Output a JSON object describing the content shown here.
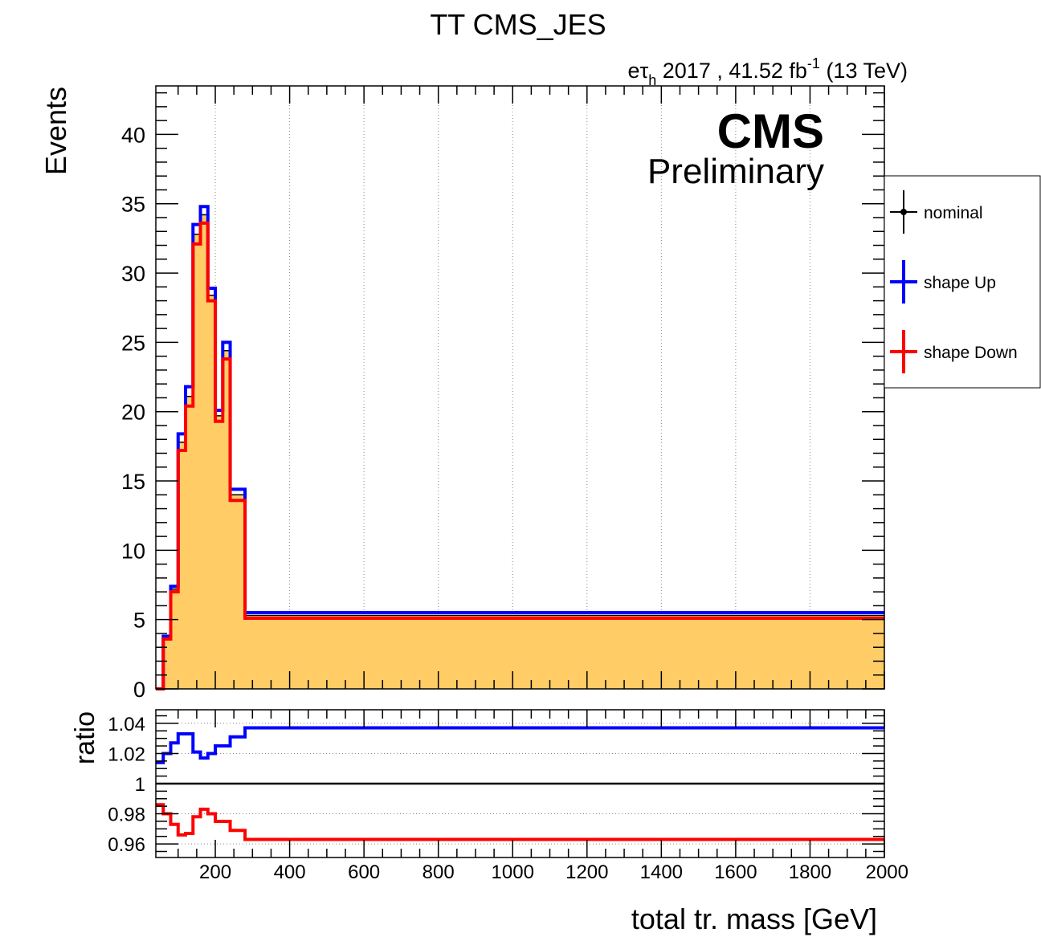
{
  "title": "TT CMS_JES",
  "lumi": {
    "channel_e": "e",
    "channel_tau": "τ",
    "channel_sub": "h",
    "text": " 2017 , 41.52 fb",
    "exp": "-1",
    "energy": " (13 TeV)"
  },
  "cms_label": "CMS",
  "cms_sublabel": "Preliminary",
  "colors": {
    "nominal_fill": "#ffcc66",
    "up": "#0000ff",
    "down": "#ff0000",
    "nominal": "#000000"
  },
  "legend": {
    "nominal": "nominal",
    "up": "shape Up",
    "down": "shape Down"
  },
  "chart_data": [
    {
      "type": "bar",
      "ylabel": "Events",
      "xlabel": "",
      "xlim": [
        40,
        2000
      ],
      "ylim": [
        0,
        43.5
      ],
      "grid": "vertical dotted at x ticks",
      "legend_position": "right, outside plot",
      "x_ticks": [
        200,
        400,
        600,
        800,
        1000,
        1200,
        1400,
        1600,
        1800,
        2000
      ],
      "y_ticks": [
        0,
        5,
        10,
        15,
        20,
        25,
        30,
        35,
        40
      ],
      "bin_edges": [
        40,
        60,
        80,
        100,
        120,
        140,
        160,
        180,
        200,
        220,
        240,
        260,
        280,
        300,
        325,
        350,
        400,
        2000
      ],
      "series": [
        {
          "name": "nominal",
          "values": [
            0,
            3.7,
            7.2,
            17.8,
            21.1,
            32.8,
            34.2,
            28.4,
            19.7,
            24.4,
            14.0,
            14.0,
            5.3,
            5.3,
            5.3,
            5.3,
            5.3
          ]
        },
        {
          "name": "shape Up",
          "values": [
            0,
            3.8,
            7.4,
            18.4,
            21.8,
            33.5,
            34.8,
            28.9,
            20.1,
            25.0,
            14.4,
            14.4,
            5.5,
            5.5,
            5.5,
            5.5,
            5.5
          ]
        },
        {
          "name": "shape Down",
          "values": [
            0,
            3.6,
            7.0,
            17.2,
            20.4,
            32.1,
            33.6,
            28.0,
            19.3,
            23.8,
            13.6,
            13.6,
            5.1,
            5.1,
            5.1,
            5.1,
            5.1
          ]
        }
      ]
    },
    {
      "type": "line",
      "ylabel": "ratio",
      "xlabel": "total tr. mass [GeV]",
      "xlim": [
        40,
        2000
      ],
      "ylim": [
        0.951,
        1.049
      ],
      "grid": "horizontal dotted at y ticks",
      "x_ticks": [
        200,
        400,
        600,
        800,
        1000,
        1200,
        1400,
        1600,
        1800,
        2000
      ],
      "y_ticks": [
        0.96,
        0.98,
        1,
        1.02,
        1.04
      ],
      "y_tick_labels": [
        "0.96",
        "0.98",
        "1",
        "1.02",
        "1.04"
      ],
      "bin_edges": [
        40,
        60,
        80,
        100,
        120,
        140,
        160,
        180,
        200,
        220,
        240,
        260,
        280,
        300,
        325,
        350,
        400,
        2000
      ],
      "reference": 1,
      "series": [
        {
          "name": "shape Up",
          "values": [
            1.014,
            1.02,
            1.027,
            1.033,
            1.033,
            1.021,
            1.017,
            1.02,
            1.025,
            1.025,
            1.031,
            1.031,
            1.037,
            1.037,
            1.037,
            1.037,
            1.037
          ]
        },
        {
          "name": "shape Down",
          "values": [
            0.986,
            0.98,
            0.973,
            0.966,
            0.967,
            0.978,
            0.983,
            0.98,
            0.975,
            0.975,
            0.969,
            0.969,
            0.963,
            0.963,
            0.963,
            0.963,
            0.963
          ]
        }
      ]
    }
  ]
}
